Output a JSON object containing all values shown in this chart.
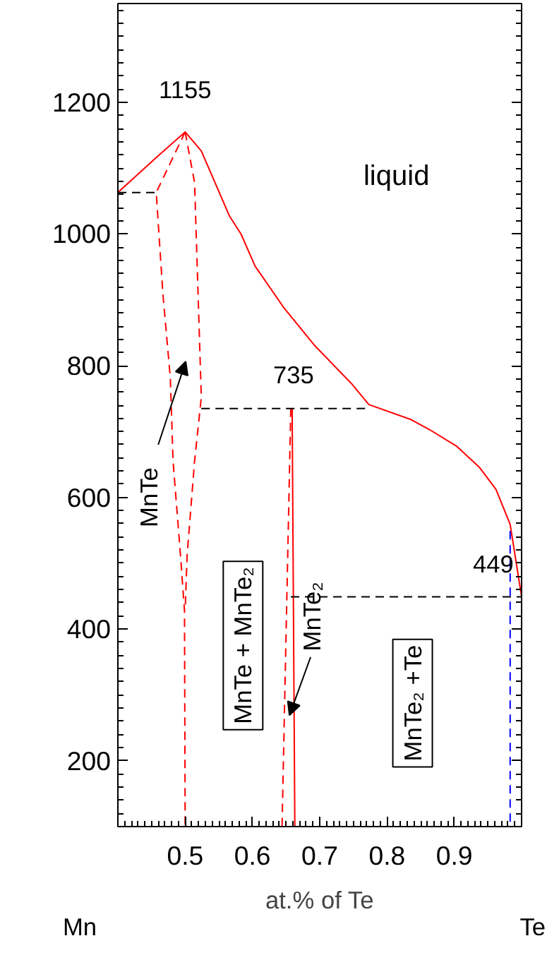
{
  "chart_data": {
    "type": "line",
    "xlabel": "at.% of Te",
    "xlim": [
      0.4,
      1.0
    ],
    "ylim": [
      100,
      1350
    ],
    "xticks": [
      {
        "value": 0.4,
        "label": null
      },
      0.5,
      0.6,
      0.7,
      0.8,
      0.9,
      {
        "value": 1.0,
        "label": null
      }
    ],
    "yticks": [
      200,
      400,
      600,
      800,
      1000,
      1200
    ],
    "grid": false,
    "marker": "none",
    "series": [
      {
        "color": "#ff0000",
        "line_style": "solid",
        "x": [
          0.4,
          0.457,
          0.5,
          0.524,
          0.566,
          0.583,
          0.604,
          0.646,
          0.693,
          0.747,
          0.773,
          0.836,
          0.863,
          0.903,
          0.937,
          0.962,
          0.983,
          1.0
        ],
        "values": [
          1063,
          1116,
          1155,
          1126,
          1027,
          1000,
          951,
          889,
          830,
          773,
          741,
          718,
          703,
          678,
          646,
          612,
          559,
          449
        ]
      },
      {
        "color": "#ff0000",
        "line_style": "dashed",
        "x": [
          0.5,
          0.457,
          0.467,
          0.478,
          0.482,
          0.493,
          0.499,
          0.5
        ],
        "values": [
          1155,
          1063,
          908,
          781,
          655,
          513,
          428,
          100
        ]
      },
      {
        "color": "#ff0000",
        "line_style": "dashed",
        "x": [
          0.5,
          0.514,
          0.524,
          0.514,
          0.503,
          0.5
        ],
        "values": [
          1155,
          1078,
          752,
          655,
          513,
          428
        ]
      },
      {
        "color": "#ff0000",
        "line_style": "solid",
        "x": [
          0.659,
          0.663
        ],
        "values": [
          735,
          100
        ]
      },
      {
        "color": "#ff0000",
        "line_style": "dashed",
        "x": [
          0.657,
          0.644
        ],
        "values": [
          735,
          100
        ]
      },
      {
        "color": "#0000ff",
        "line_style": "dashed",
        "x": [
          0.983,
          0.983
        ],
        "values": [
          549,
          100
        ]
      },
      {
        "color": "#000000",
        "line_style": "dashed",
        "x": [
          0.4,
          0.457
        ],
        "values": [
          1063,
          1063
        ]
      },
      {
        "color": "#000000",
        "line_style": "dashed",
        "x": [
          0.524,
          0.773
        ],
        "values": [
          735,
          735
        ]
      },
      {
        "color": "#000000",
        "line_style": "dashed",
        "x": [
          0.657,
          1.0
        ],
        "values": [
          449,
          449
        ]
      }
    ],
    "annotations": [
      {
        "text": "1155",
        "x": 0.5,
        "y": 1155
      },
      {
        "text": "735",
        "x": 0.659,
        "y": 735
      },
      {
        "text": "449",
        "x": 0.983,
        "y": 449
      },
      "liquid",
      "MnTe",
      "MnTe + MnTe₂",
      {
        "text": "MnTe₂",
        "x": 0.655,
        "y": 269
      },
      "MnTe₂ +Te",
      "Mn",
      "Te"
    ]
  }
}
